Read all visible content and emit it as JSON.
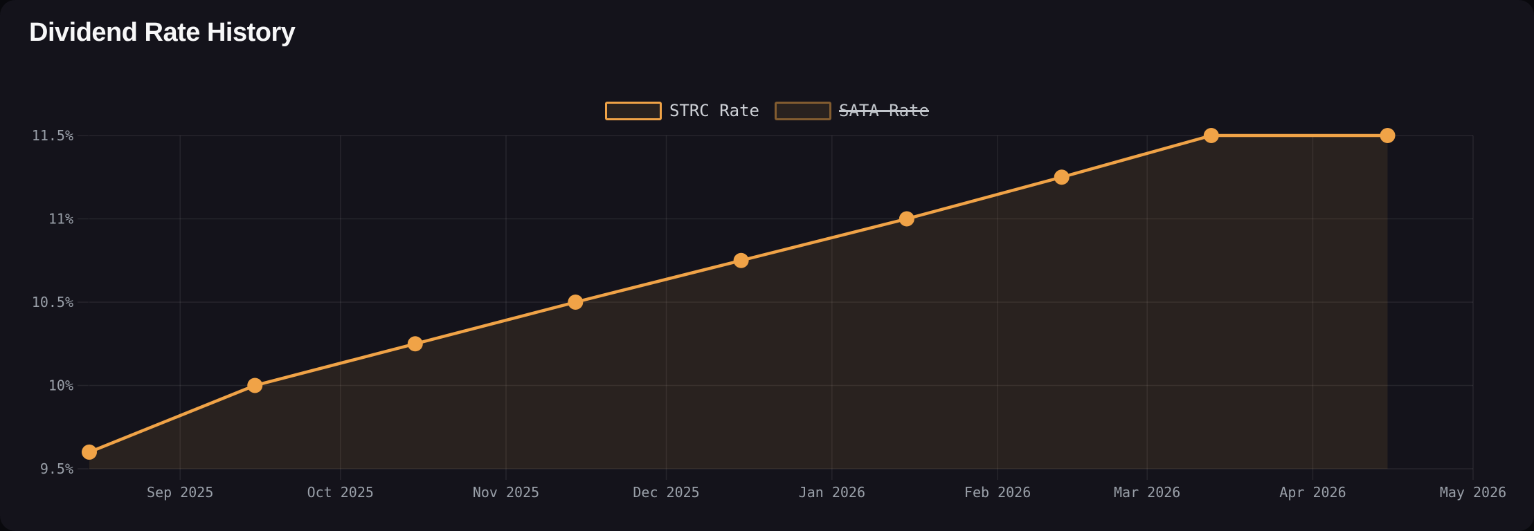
{
  "page": {
    "title": "Dividend Rate History"
  },
  "colors": {
    "background": "#14131b",
    "accent_orange": "#f0a347",
    "area_fill": "rgba(240,163,71,0.10)",
    "gridline": "rgba(255,255,255,0.08)",
    "axis_label": "#9aa0a9",
    "legend_text": "#ced1d7",
    "title_text": "#f7f7f8"
  },
  "chart_data": {
    "type": "line",
    "title": "Dividend Rate History",
    "xlabel": "",
    "ylabel": "",
    "grid": true,
    "legend_position": "top-center",
    "x_domain": [
      "2025-08-15",
      "2026-05-01"
    ],
    "y_domain": [
      9.5,
      11.5
    ],
    "y_ticks": [
      {
        "value": 9.5,
        "label": "9.5%"
      },
      {
        "value": 10.0,
        "label": "10%"
      },
      {
        "value": 10.5,
        "label": "10.5%"
      },
      {
        "value": 11.0,
        "label": "11%"
      },
      {
        "value": 11.5,
        "label": "11.5%"
      }
    ],
    "x_ticks": [
      {
        "date": "2025-09-01",
        "label": "Sep 2025"
      },
      {
        "date": "2025-10-01",
        "label": "Oct 2025"
      },
      {
        "date": "2025-11-01",
        "label": "Nov 2025"
      },
      {
        "date": "2025-12-01",
        "label": "Dec 2025"
      },
      {
        "date": "2026-01-01",
        "label": "Jan 2026"
      },
      {
        "date": "2026-02-01",
        "label": "Feb 2026"
      },
      {
        "date": "2026-03-01",
        "label": "Mar 2026"
      },
      {
        "date": "2026-04-01",
        "label": "Apr 2026"
      },
      {
        "date": "2026-05-01",
        "label": "May 2026"
      }
    ],
    "series": [
      {
        "name": "STRC Rate",
        "hidden": false,
        "color": "#f0a347",
        "legend_border": "#f0a347",
        "fill_css": "rgba(240,163,71,0.10)",
        "line_width": 4.5,
        "point_radius": 11,
        "points": [
          {
            "date": "2025-08-15",
            "value": 9.6
          },
          {
            "date": "2025-09-15",
            "value": 10.0
          },
          {
            "date": "2025-10-15",
            "value": 10.25
          },
          {
            "date": "2025-11-14",
            "value": 10.5
          },
          {
            "date": "2025-12-15",
            "value": 10.75
          },
          {
            "date": "2026-01-15",
            "value": 11.0
          },
          {
            "date": "2026-02-13",
            "value": 11.25
          },
          {
            "date": "2026-03-13",
            "value": 11.5
          },
          {
            "date": "2026-04-15",
            "value": 11.5
          }
        ]
      },
      {
        "name": "SATA Rate",
        "hidden": true,
        "color": "rgba(240,163,71,0.45)",
        "legend_border": "rgba(240,163,71,0.45)",
        "fill_css": "rgba(240,163,71,0.10)",
        "points": []
      }
    ]
  }
}
